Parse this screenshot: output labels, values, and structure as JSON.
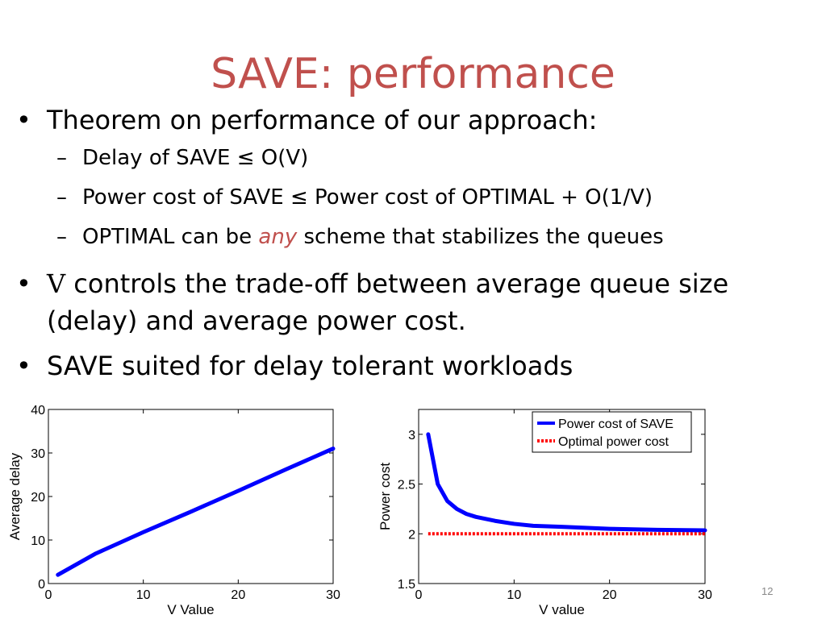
{
  "slide": {
    "title": "SAVE: performance",
    "bullets": [
      "Theorem on performance of our approach:",
      "controls the trade-off between average queue size (delay) and average power cost.",
      "SAVE suited for delay tolerant workloads"
    ],
    "bullet2_symbol": "V",
    "bullet_marker": "•",
    "sub_marker": "–",
    "subbullets": [
      "Delay of SAVE ≤ O(V)",
      "Power cost of SAVE ≤ Power cost of OPTIMAL + O(1/V)"
    ],
    "sub3": {
      "pre": "OPTIMAL can be ",
      "emph": "any",
      "post": " scheme that stabilizes the queues"
    },
    "slide_number": "12",
    "colors": {
      "title": "#c0504d",
      "emphasis": "#c0504d"
    }
  },
  "chart_data": [
    {
      "type": "line",
      "xlabel": "V Value",
      "ylabel": "Average delay",
      "xlim": [
        0,
        30
      ],
      "ylim": [
        0,
        40
      ],
      "xticks": [
        "0",
        "10",
        "20",
        "30"
      ],
      "yticks": [
        "0",
        "10",
        "20",
        "30",
        "40"
      ],
      "grid": false,
      "series": [
        {
          "color": "#0000ff",
          "x": [
            1,
            5,
            10,
            15,
            20,
            25,
            30
          ],
          "y": [
            2,
            6.9,
            11.8,
            16.5,
            21.3,
            26.2,
            31
          ]
        }
      ]
    },
    {
      "type": "line",
      "xlabel": "V value",
      "ylabel": "Power cost",
      "xlim": [
        0,
        30
      ],
      "ylim": [
        1.5,
        3.25
      ],
      "xticks": [
        "0",
        "10",
        "20",
        "30"
      ],
      "yticks": [
        "1.5",
        "2",
        "2.5",
        "3"
      ],
      "grid": false,
      "legend": "top-right",
      "series": [
        {
          "name": "Power cost of SAVE",
          "color": "#0000ff",
          "style": "solid",
          "x": [
            1,
            2,
            3,
            4,
            5,
            6,
            8,
            10,
            12,
            15,
            20,
            25,
            30
          ],
          "y": [
            3.0,
            2.5,
            2.33,
            2.25,
            2.2,
            2.17,
            2.13,
            2.1,
            2.08,
            2.07,
            2.05,
            2.04,
            2.035
          ]
        },
        {
          "name": "Optimal power cost",
          "color": "#ff0000",
          "style": "dotted",
          "x": [
            1,
            30
          ],
          "y": [
            2.0,
            2.0
          ]
        }
      ]
    }
  ]
}
